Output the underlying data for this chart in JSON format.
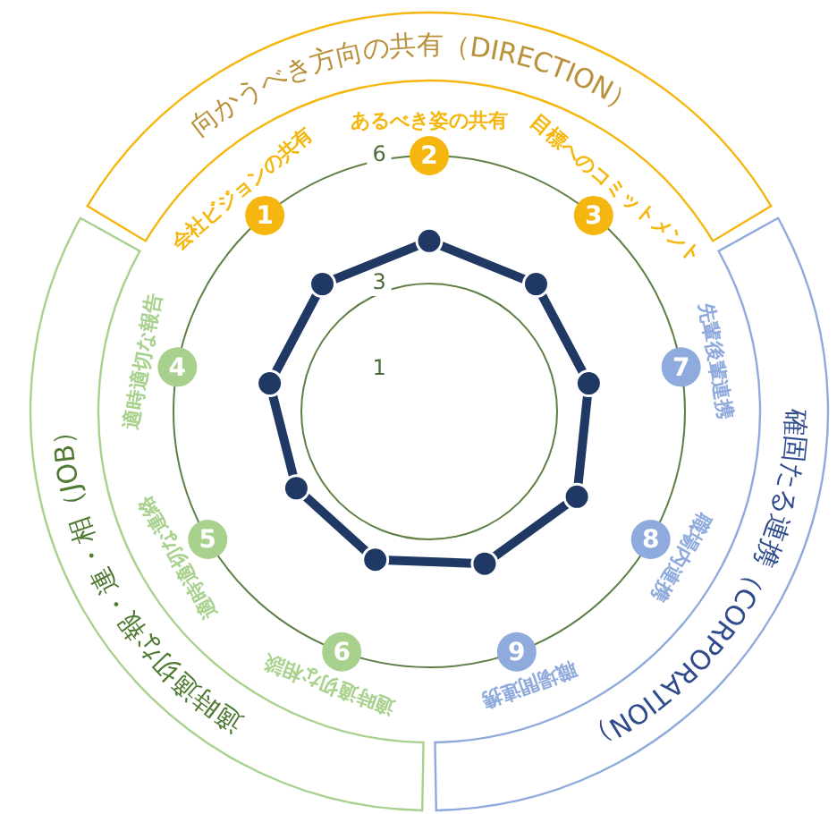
{
  "chart_data": {
    "type": "radar",
    "categories": [
      "あるべき姿の共有",
      "目標へのコミットメント",
      "先輩後輩連携",
      "職場内連携",
      "職場間連携",
      "適時適切な相談",
      "適時適切な連絡",
      "適時適切な報告",
      "会社ビジョンの共有"
    ],
    "series": [
      {
        "color": "#1f3864",
        "values": [
          4.0,
          3.9,
          3.8,
          4.0,
          3.8,
          3.7,
          3.6,
          3.8,
          3.9
        ]
      }
    ],
    "ylim": [
      0,
      6
    ],
    "yticks": [
      1,
      3,
      6
    ],
    "grid": true,
    "legend": false,
    "marker": "circle",
    "line_style": "solid",
    "annotations": [
      "向かうべき方向の共有（DIRECTION）",
      "確固たる連携（CORPORATION）",
      "適時適切な報・連・相（JOB）",
      {
        "text": "2",
        "x": "あるべき姿の共有"
      },
      {
        "text": "3",
        "x": "目標へのコミットメント"
      },
      {
        "text": "7",
        "x": "先輩後輩連携"
      },
      {
        "text": "8",
        "x": "職場内連携"
      },
      {
        "text": "9",
        "x": "職場間連携"
      },
      {
        "text": "6",
        "x": "適時適切な相談"
      },
      {
        "text": "5",
        "x": "適時適切な連絡"
      },
      {
        "text": "4",
        "x": "適時適切な報告"
      },
      {
        "text": "1",
        "x": "会社ビジョンの共有"
      }
    ]
  }
}
